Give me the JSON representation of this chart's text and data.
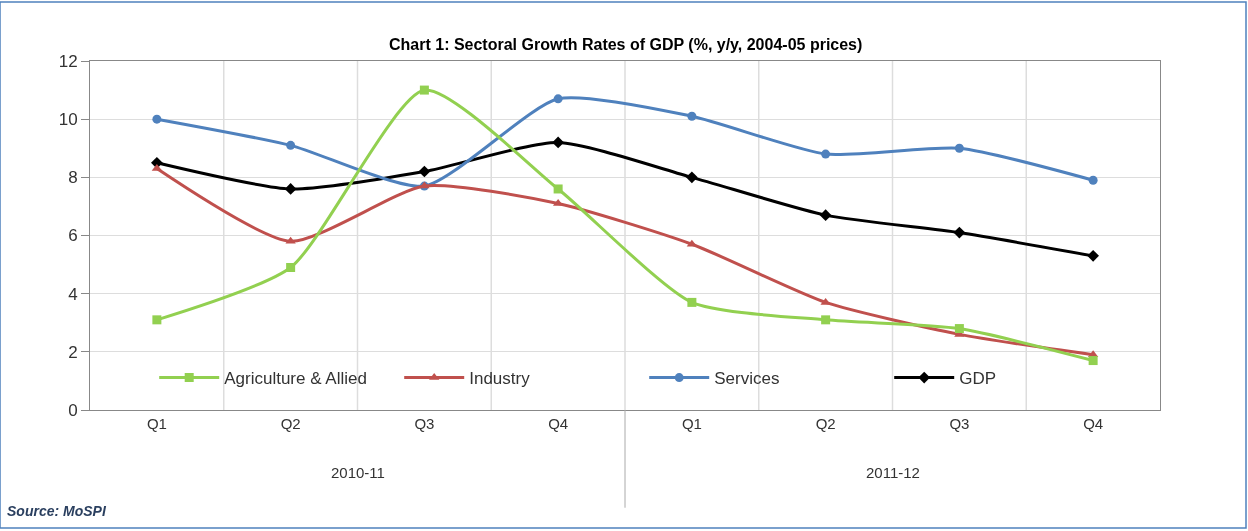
{
  "chart_data": {
    "type": "line",
    "title": "Chart 1: Sectoral Growth Rates of GDP (%, y/y, 2004-05 prices)",
    "categories": [
      "Q1",
      "Q2",
      "Q3",
      "Q4",
      "Q1",
      "Q2",
      "Q3",
      "Q4"
    ],
    "series": [
      {
        "name": "Agriculture & Allied",
        "color": "#92d050",
        "marker": "square",
        "values": [
          3.1,
          4.9,
          11.0,
          7.6,
          3.7,
          3.1,
          2.8,
          1.7
        ]
      },
      {
        "name": "Industry",
        "color": "#c0504d",
        "marker": "triangle",
        "values": [
          8.3,
          5.8,
          7.7,
          7.1,
          5.7,
          3.7,
          2.6,
          1.9
        ]
      },
      {
        "name": "Services",
        "color": "#4f81bd",
        "marker": "circle",
        "values": [
          10.0,
          9.1,
          7.7,
          10.7,
          10.1,
          8.8,
          9.0,
          7.9
        ]
      },
      {
        "name": "GDP",
        "color": "#000000",
        "marker": "diamond",
        "values": [
          8.5,
          7.6,
          8.2,
          9.2,
          8.0,
          6.7,
          6.1,
          5.3
        ]
      }
    ],
    "ylim": [
      0,
      12
    ],
    "yticks": [
      0,
      2,
      4,
      6,
      8,
      10,
      12
    ],
    "grid": true,
    "legend": "bottom",
    "annotations": [
      "2010-11",
      "2011-12",
      "Source: MoSPI"
    ]
  }
}
